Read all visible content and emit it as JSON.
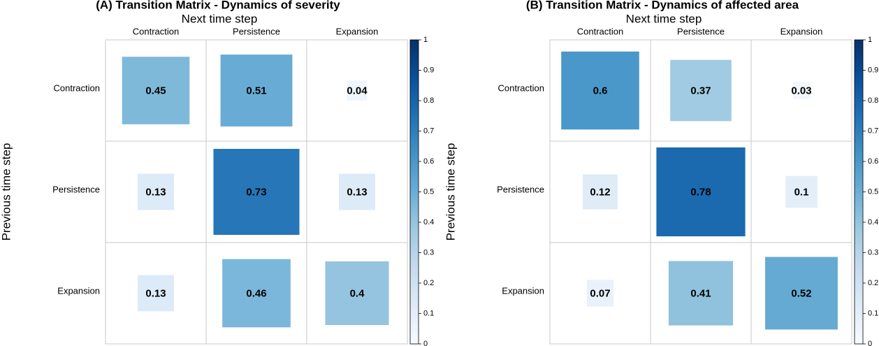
{
  "chart_data": [
    {
      "type": "matrix",
      "title": "(A) Transition Matrix - Dynamics of severity",
      "x_label": "Next time step",
      "y_label": "Previous time step",
      "columns": [
        "Contraction",
        "Persistence",
        "Expansion"
      ],
      "rows": [
        "Contraction",
        "Persistence",
        "Expansion"
      ],
      "values": [
        [
          0.45,
          0.51,
          0.04
        ],
        [
          0.13,
          0.73,
          0.13
        ],
        [
          0.13,
          0.46,
          0.4
        ]
      ],
      "colormap": "Blues",
      "clim": [
        0,
        1
      ],
      "cticks": [
        0,
        0.1,
        0.2,
        0.3,
        0.4,
        0.5,
        0.6,
        0.7,
        0.8,
        0.9,
        1
      ]
    },
    {
      "type": "matrix",
      "title": "(B) Transition Matrix - Dynamics of affected area",
      "x_label": "Next time step",
      "y_label": "Previous time step",
      "columns": [
        "Contraction",
        "Persistence",
        "Expansion"
      ],
      "rows": [
        "Contraction",
        "Persistence",
        "Expansion"
      ],
      "values": [
        [
          0.6,
          0.37,
          0.03
        ],
        [
          0.12,
          0.78,
          0.1
        ],
        [
          0.07,
          0.41,
          0.52
        ]
      ],
      "colormap": "Blues",
      "clim": [
        0,
        1
      ],
      "cticks": [
        0,
        0.1,
        0.2,
        0.3,
        0.4,
        0.5,
        0.6,
        0.7,
        0.8,
        0.9,
        1
      ]
    }
  ]
}
